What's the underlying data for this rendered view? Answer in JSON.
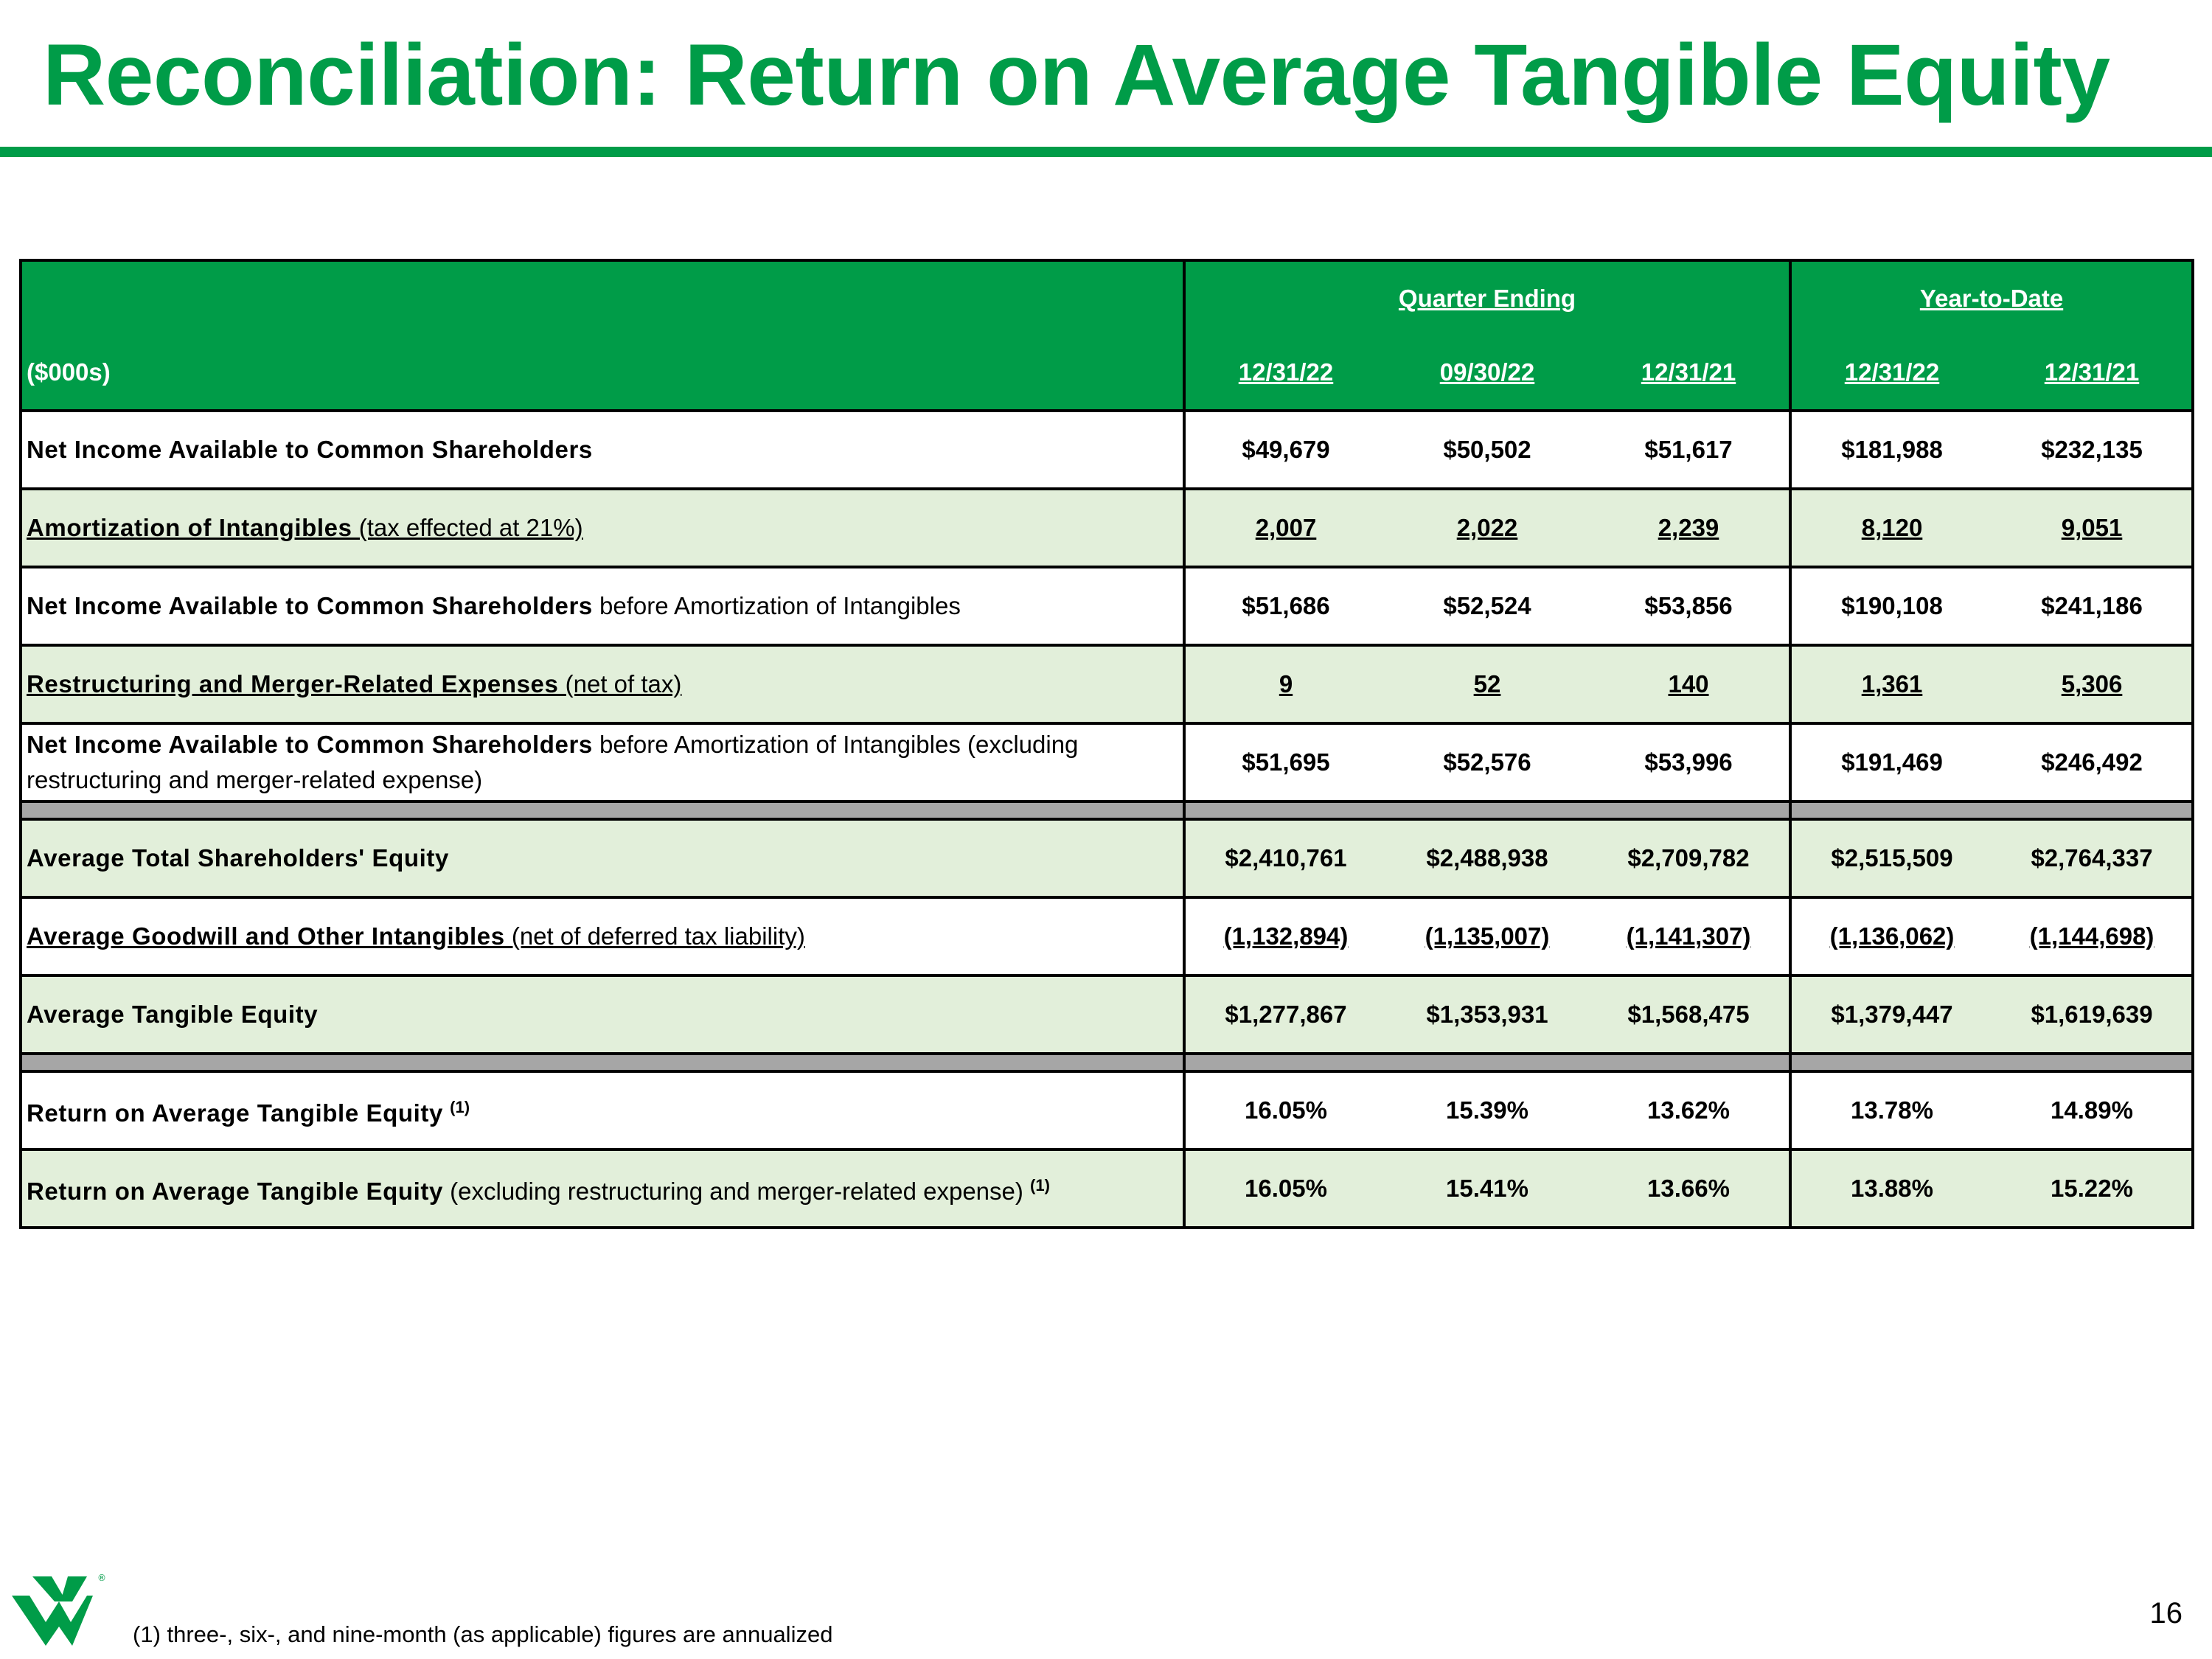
{
  "title": "Reconciliation: Return on Average Tangible Equity",
  "table": {
    "unit_label": "($000s)",
    "groups": {
      "quarter": "Quarter Ending",
      "ytd": "Year-to-Date"
    },
    "columns": [
      "12/31/22",
      "09/30/22",
      "12/31/21",
      "12/31/22",
      "12/31/21"
    ],
    "rows": [
      {
        "bold": "Net Income Available to Common Shareholders",
        "rest": "",
        "sup": "",
        "values": [
          "$49,679",
          "$50,502",
          "$51,617",
          "$181,988",
          "$232,135"
        ]
      },
      {
        "bold": "Amortization of Intangibles",
        "rest": " (tax effected at 21%)",
        "sup": "",
        "values": [
          "2,007",
          "2,022",
          "2,239",
          "8,120",
          "9,051"
        ]
      },
      {
        "bold": "Net Income Available to Common Shareholders",
        "rest": " before Amortization of Intangibles",
        "sup": "",
        "values": [
          "$51,686",
          "$52,524",
          "$53,856",
          "$190,108",
          "$241,186"
        ]
      },
      {
        "bold": "Restructuring and Merger-Related Expenses",
        "rest": " (net of tax)",
        "sup": "",
        "values": [
          "9",
          "52",
          "140",
          "1,361",
          "5,306"
        ]
      },
      {
        "bold": "Net Income Available to Common Shareholders",
        "rest": " before Amortization of Intangibles (excluding restructuring and merger-related expense)",
        "sup": "",
        "values": [
          "$51,695",
          "$52,576",
          "$53,996",
          "$191,469",
          "$246,492"
        ]
      },
      {
        "bold": "Average Total Shareholders' Equity",
        "rest": "",
        "sup": "",
        "values": [
          "$2,410,761",
          "$2,488,938",
          "$2,709,782",
          "$2,515,509",
          "$2,764,337"
        ]
      },
      {
        "bold": "Average Goodwill and Other Intangibles",
        "rest": " (net of deferred tax liability)",
        "sup": "",
        "values": [
          "(1,132,894)",
          "(1,135,007)",
          "(1,141,307)",
          "(1,136,062)",
          "(1,144,698)"
        ]
      },
      {
        "bold": "Average Tangible Equity",
        "rest": "",
        "sup": "",
        "values": [
          "$1,277,867",
          "$1,353,931",
          "$1,568,475",
          "$1,379,447",
          "$1,619,639"
        ]
      },
      {
        "bold": "Return on Average Tangible Equity",
        "rest": " ",
        "sup": "(1)",
        "values": [
          "16.05%",
          "15.39%",
          "13.62%",
          "13.78%",
          "14.89%"
        ]
      },
      {
        "bold": "Return on Average Tangible Equity",
        "rest": " (excluding restructuring and merger-related expense) ",
        "sup": "(1)",
        "values": [
          "16.05%",
          "15.41%",
          "13.66%",
          "13.88%",
          "15.22%"
        ]
      }
    ]
  },
  "footnote": "(1) three-, six-, and nine-month (as applicable) figures are annualized",
  "page_number": "16",
  "colors": {
    "brand_green": "#009C48",
    "light_green": "#E2EFDA",
    "separator_gray": "#A6A6A6"
  }
}
